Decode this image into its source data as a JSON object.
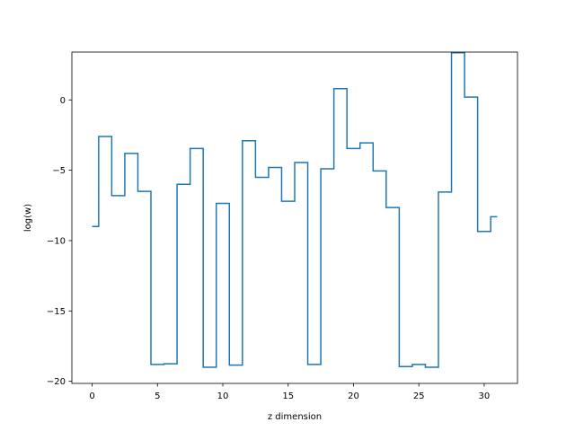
{
  "chart_data": {
    "type": "line",
    "drawstyle": "steps-mid",
    "title": "",
    "xlabel": "z dimension",
    "ylabel": "log(w)",
    "xlim": [
      -1.55,
      32.55
    ],
    "ylim": [
      -20.15,
      3.4
    ],
    "xticks": [
      0,
      5,
      10,
      15,
      20,
      25,
      30
    ],
    "yticks": [
      -20,
      -15,
      -10,
      -5,
      0
    ],
    "grid": false,
    "legend": "none",
    "series": [
      {
        "color": "#1f77b4",
        "x": [
          0,
          1,
          2,
          3,
          4,
          5,
          6,
          7,
          8,
          9,
          10,
          11,
          12,
          13,
          14,
          15,
          16,
          17,
          18,
          19,
          20,
          21,
          22,
          23,
          24,
          25,
          26,
          27,
          28,
          29,
          30,
          31
        ],
        "y": [
          -9.0,
          -2.6,
          -6.8,
          -3.8,
          -6.5,
          -18.8,
          -18.75,
          -6.0,
          -3.45,
          -19.0,
          -7.35,
          -18.85,
          -2.9,
          -5.5,
          -4.8,
          -7.2,
          -4.45,
          -18.8,
          -4.9,
          0.8,
          -3.45,
          -3.05,
          -5.05,
          -7.65,
          -18.95,
          -18.8,
          -19.0,
          -6.55,
          3.35,
          0.2,
          -9.35,
          -8.3
        ]
      }
    ]
  }
}
